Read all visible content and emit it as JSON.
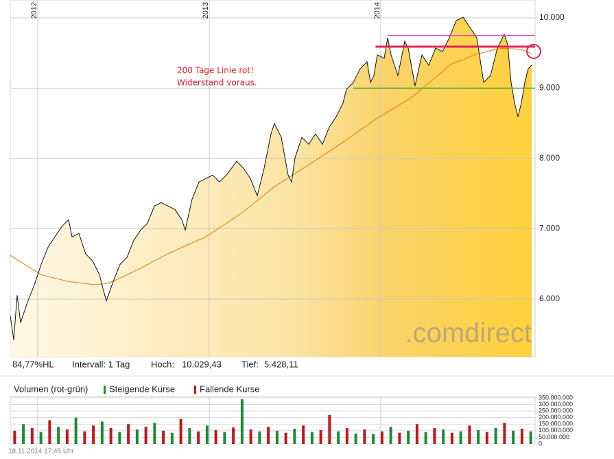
{
  "chart_data": [
    {
      "type": "line",
      "x": [
        2011.84,
        2011.86,
        2011.88,
        2011.9,
        2011.94,
        2011.98,
        2012.02,
        2012.06,
        2012.1,
        2012.14,
        2012.18,
        2012.2,
        2012.24,
        2012.28,
        2012.32,
        2012.36,
        2012.38,
        2012.4,
        2012.44,
        2012.48,
        2012.52,
        2012.56,
        2012.6,
        2012.64,
        2012.68,
        2012.72,
        2012.76,
        2012.8,
        2012.84,
        2012.86,
        2012.9,
        2012.94,
        2012.98,
        2013.02,
        2013.06,
        2013.1,
        2013.16,
        2013.2,
        2013.24,
        2013.28,
        2013.32,
        2013.36,
        2013.38,
        2013.42,
        2013.46,
        2013.48,
        2013.5,
        2013.54,
        2013.58,
        2013.62,
        2013.66,
        2013.7,
        2013.74,
        2013.78,
        2013.8,
        2013.84,
        2013.88,
        2013.92,
        2013.94,
        2013.96,
        2013.98,
        2014.02,
        2014.04,
        2014.06,
        2014.1,
        2014.14,
        2014.16,
        2014.2,
        2014.24,
        2014.28,
        2014.32,
        2014.36,
        2014.4,
        2014.44,
        2014.48,
        2014.52,
        2014.56,
        2014.6,
        2014.64,
        2014.68,
        2014.72,
        2014.74,
        2014.76,
        2014.78,
        2014.8,
        2014.82,
        2014.84,
        2014.86,
        2014.88
      ],
      "series": [
        {
          "color": "#111111",
          "values": [
            5762,
            5420,
            6055,
            5664,
            5957,
            6201,
            6494,
            6738,
            6885,
            7031,
            7129,
            6885,
            6934,
            6641,
            6543,
            6348,
            6152,
            5976,
            6250,
            6494,
            6592,
            6836,
            6982,
            7080,
            7324,
            7373,
            7324,
            7275,
            7129,
            6982,
            7422,
            7666,
            7715,
            7764,
            7666,
            7764,
            7959,
            7861,
            7715,
            7471,
            7861,
            8350,
            8496,
            8301,
            7764,
            7666,
            8008,
            8301,
            8203,
            8350,
            8203,
            8447,
            8594,
            8789,
            8984,
            9082,
            9277,
            9375,
            9082,
            9180,
            9473,
            9424,
            9717,
            9473,
            9180,
            9668,
            9570,
            9033,
            9473,
            9326,
            9570,
            9521,
            9717,
            9961,
            10010,
            9863,
            9717,
            9082,
            9180,
            9570,
            9766,
            9619,
            9082,
            8789,
            8594,
            8789,
            9082,
            9277,
            9326
          ]
        },
        {
          "color": "#e07b00",
          "values": [
            6621,
            6591,
            6560,
            6530,
            6469,
            6408,
            6348,
            6323,
            6299,
            6274,
            6250,
            6244,
            6232,
            6220,
            6207,
            6208,
            6215,
            6223,
            6253,
            6300,
            6346,
            6393,
            6441,
            6492,
            6543,
            6594,
            6645,
            6692,
            6735,
            6756,
            6799,
            6842,
            6885,
            6949,
            7014,
            7078,
            7175,
            7246,
            7324,
            7402,
            7480,
            7559,
            7598,
            7660,
            7723,
            7754,
            7785,
            7848,
            7910,
            7974,
            8039,
            8103,
            8168,
            8232,
            8266,
            8334,
            8403,
            8471,
            8506,
            8540,
            8574,
            8633,
            8662,
            8691,
            8750,
            8809,
            8838,
            8908,
            8990,
            9072,
            9154,
            9236,
            9326,
            9375,
            9400,
            9449,
            9485,
            9509,
            9534,
            9558,
            9567,
            9564,
            9561,
            9557,
            9554,
            9551,
            9531,
            9512,
            9492
          ]
        }
      ],
      "xlim": [
        2011.84,
        2014.9
      ],
      "xticks": [
        2012,
        2013,
        2014
      ],
      "ylim": [
        5180,
        10254
      ],
      "yticks": [
        {
          "value": 6000,
          "label": "6.000"
        },
        {
          "value": 7000,
          "label": "7.000"
        },
        {
          "value": 8000,
          "label": "8.000"
        },
        {
          "value": 9000,
          "label": "9.000"
        },
        {
          "value": 10000,
          "label": "10.000"
        }
      ],
      "grid": true,
      "hlines": [
        {
          "value": 9750,
          "from": 2014.04,
          "color": "#cc44cc",
          "width": 1.3
        },
        {
          "value": 9590,
          "from": 2013.97,
          "color": "#e0245e",
          "width": 3
        },
        {
          "value": 9000,
          "from": 2013.84,
          "color": "#4aa02c",
          "width": 1.5
        }
      ],
      "annotation": [
        "200 Tage Linie rot!",
        "Widerstand voraus."
      ],
      "stats": [
        "84,77%HL",
        "Intervall: 1 Tag",
        "Hoch:",
        "10.029,43",
        "Tief:",
        "5.428,11"
      ],
      "watermark": ".comdirect"
    },
    {
      "type": "bar",
      "title": "Volumen (rot-grün)",
      "categories": [
        null,
        null,
        null,
        null,
        null,
        null,
        null,
        null,
        null,
        null,
        null,
        null,
        null,
        null,
        null,
        null,
        null,
        null,
        null,
        null,
        null,
        null,
        null,
        null,
        null,
        null,
        null,
        null,
        null,
        null,
        null,
        null,
        null,
        null,
        null,
        null,
        null,
        null,
        null,
        null,
        null,
        null,
        null,
        null,
        null,
        null,
        null,
        null,
        null,
        null,
        null,
        null,
        null,
        null,
        null,
        null,
        null,
        null,
        null,
        null
      ],
      "series": [
        {
          "name": "Steigende Kurse",
          "color": "#1a8a3a",
          "values": [
            null,
            150000000,
            null,
            90000000,
            null,
            130000000,
            null,
            200000000,
            null,
            null,
            170000000,
            null,
            90000000,
            null,
            110000000,
            null,
            160000000,
            null,
            85000000,
            null,
            120000000,
            null,
            140000000,
            null,
            90000000,
            null,
            340000000,
            null,
            95000000,
            null,
            100000000,
            null,
            115000000,
            null,
            90000000,
            null,
            null,
            95000000,
            null,
            80000000,
            null,
            75000000,
            null,
            130000000,
            null,
            100000000,
            null,
            90000000,
            null,
            110000000,
            null,
            95000000,
            null,
            105000000,
            null,
            120000000,
            null,
            100000000,
            null,
            95000000
          ]
        },
        {
          "name": "Fallende Kurse",
          "color": "#c0161c",
          "values": [
            100000000,
            null,
            120000000,
            null,
            180000000,
            null,
            110000000,
            null,
            95000000,
            140000000,
            null,
            120000000,
            null,
            150000000,
            null,
            130000000,
            null,
            100000000,
            null,
            190000000,
            null,
            95000000,
            null,
            105000000,
            null,
            125000000,
            null,
            110000000,
            null,
            130000000,
            null,
            85000000,
            null,
            140000000,
            null,
            105000000,
            220000000,
            null,
            120000000,
            null,
            110000000,
            null,
            95000000,
            null,
            85000000,
            null,
            150000000,
            null,
            120000000,
            null,
            85000000,
            null,
            140000000,
            null,
            90000000,
            null,
            160000000,
            null,
            115000000,
            null
          ]
        }
      ],
      "ylim": [
        0,
        360000000
      ],
      "yticks": [
        0,
        {
          "value": 50000000,
          "label": "50.000.000"
        },
        {
          "value": 100000000,
          "label": "100.000.000"
        },
        {
          "value": 150000000,
          "label": "150.000.000"
        },
        {
          "value": 200000000,
          "label": "200.000.000"
        },
        {
          "value": 250000000,
          "label": "250.000.000"
        },
        {
          "value": 300000000,
          "label": "300.000.000"
        },
        {
          "value": 350000000,
          "label": "350.000.000"
        }
      ],
      "grid": true
    }
  ],
  "footer": "18.11.2014 17:45 Uhr"
}
